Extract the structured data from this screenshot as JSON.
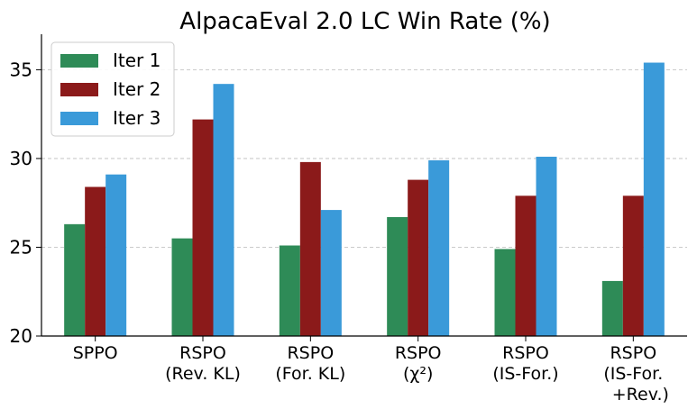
{
  "chart_data": {
    "type": "bar",
    "title": "AlpacaEval 2.0 LC Win Rate (%)",
    "xlabel": "",
    "ylabel": "",
    "ylim": [
      20,
      37
    ],
    "yticks": [
      20,
      25,
      30,
      35
    ],
    "grid": "y-dashed",
    "legend_position": "top-left",
    "categories": [
      [
        "SPPO"
      ],
      [
        "RSPO",
        "(Rev. KL)"
      ],
      [
        "RSPO",
        "(For. KL)"
      ],
      [
        "RSPO",
        "(χ²)"
      ],
      [
        "RSPO",
        "(IS-For.)"
      ],
      [
        "RSPO",
        "(IS-For.",
        "+Rev.)"
      ]
    ],
    "series": [
      {
        "name": "Iter 1",
        "color": "#2e8b57",
        "values": [
          26.3,
          25.5,
          25.1,
          26.7,
          24.9,
          23.1
        ]
      },
      {
        "name": "Iter 2",
        "color": "#8b1a1a",
        "values": [
          28.4,
          32.2,
          29.8,
          28.8,
          27.9,
          27.9
        ]
      },
      {
        "name": "Iter 3",
        "color": "#3a9ad9",
        "values": [
          29.1,
          34.2,
          27.1,
          29.9,
          30.1,
          35.4
        ]
      }
    ]
  }
}
